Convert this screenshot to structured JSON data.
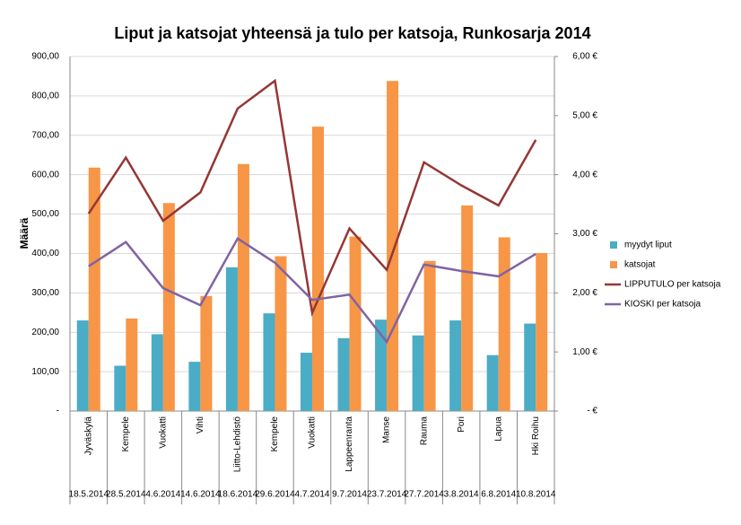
{
  "chart_data": {
    "type": "bar-line",
    "title": "Liput ja katsojat yhteensä ja tulo per katsoja, Runkosarja 2014",
    "y_label": "Määrä",
    "categories": [
      "Jyväskylä",
      "Kempele",
      "Vuokatti",
      "Vihti",
      "Liitto-Lehdistö",
      "Kempele",
      "Vuokatti",
      "Lappeenranta",
      "Manse",
      "Rauma",
      "Pori",
      "Lapua",
      "Hki Roihu"
    ],
    "dates": [
      "18.5.2014",
      "28.5.2014",
      "4.6.2014",
      "14.6.2014",
      "18.6.2014",
      "29.6.2014",
      "4.7.2014",
      "9.7.2014",
      "23.7.2014",
      "27.7.2014",
      "3.8.2014",
      "6.8.2014",
      "10.8.2014"
    ],
    "ylim": [
      0,
      900
    ],
    "yticks": [
      {
        "value": 0,
        "label": "-"
      },
      {
        "value": 100,
        "label": "100,00"
      },
      {
        "value": 200,
        "label": "200,00"
      },
      {
        "value": 300,
        "label": "300,00"
      },
      {
        "value": 400,
        "label": "400,00"
      },
      {
        "value": 500,
        "label": "500,00"
      },
      {
        "value": 600,
        "label": "600,00"
      },
      {
        "value": 700,
        "label": "700,00"
      },
      {
        "value": 800,
        "label": "800,00"
      },
      {
        "value": 900,
        "label": "900,00"
      }
    ],
    "y2lim": [
      0,
      6
    ],
    "y2ticks": [
      {
        "value": 0,
        "label": "- €"
      },
      {
        "value": 1,
        "label": "1,00 €"
      },
      {
        "value": 2,
        "label": "2,00 €"
      },
      {
        "value": 3,
        "label": "3,00 €"
      },
      {
        "value": 4,
        "label": "4,00 €"
      },
      {
        "value": 5,
        "label": "5,00 €"
      },
      {
        "value": 6,
        "label": "6,00 €"
      }
    ],
    "grid": true,
    "legend": "right",
    "series": [
      {
        "name": "myydyt liput",
        "type": "bar",
        "color": "#4bacc6",
        "values": [
          230,
          115,
          195,
          125,
          365,
          248,
          148,
          185,
          232,
          192,
          230,
          142,
          222
        ]
      },
      {
        "name": "katsojat",
        "type": "bar",
        "color": "#f79646",
        "values": [
          618,
          235,
          528,
          292,
          627,
          393,
          722,
          443,
          838,
          381,
          522,
          441,
          401
        ]
      },
      {
        "name": "LIPPUTULO per katsoja",
        "type": "line",
        "axis": "y2",
        "color": "#953735",
        "values": [
          3.34,
          4.29,
          3.22,
          3.7,
          5.12,
          5.59,
          1.66,
          3.09,
          2.39,
          4.21,
          3.82,
          3.48,
          4.59
        ]
      },
      {
        "name": "KIOSKI per katsoja",
        "type": "line",
        "axis": "y2",
        "color": "#8064a2",
        "values": [
          2.45,
          2.86,
          2.08,
          1.79,
          2.92,
          2.51,
          1.88,
          1.97,
          1.17,
          2.48,
          2.37,
          2.28,
          2.66
        ]
      }
    ]
  }
}
